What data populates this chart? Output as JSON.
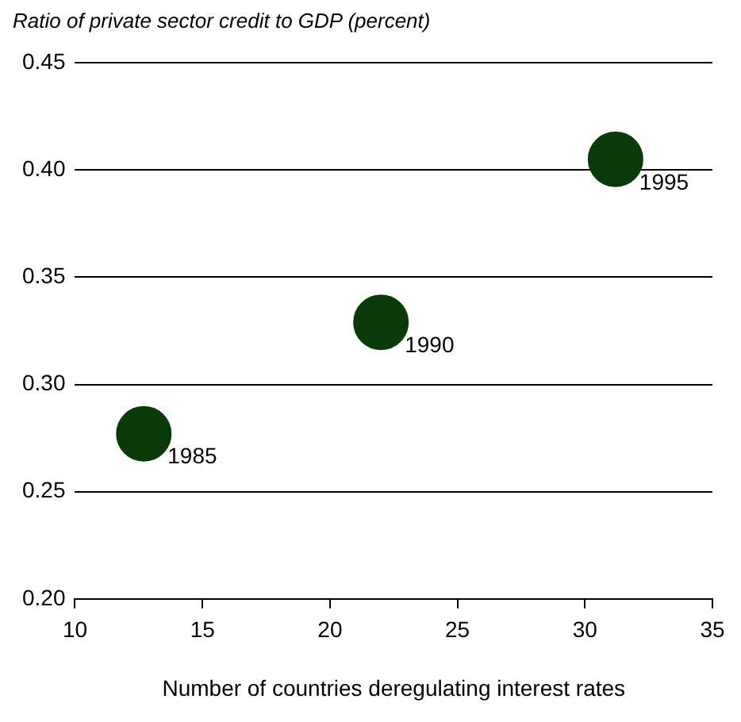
{
  "chart_data": {
    "type": "scatter",
    "ylabel": "Ratio of private sector credit to GDP (percent)",
    "xlabel": "Number of countries deregulating interest rates",
    "x": [
      12.7,
      22.0,
      31.2
    ],
    "values": [
      0.277,
      0.329,
      0.405
    ],
    "color": "#0a3a0a",
    "marker": "circle",
    "xlim": [
      10,
      35
    ],
    "xticks": [
      10,
      15,
      20,
      25,
      30,
      35
    ],
    "ylim": [
      0.2,
      0.45
    ],
    "yticks": [
      {
        "value": 0.2,
        "label": "0.20"
      },
      {
        "value": 0.25,
        "label": "0.25"
      },
      {
        "value": 0.3,
        "label": "0.30"
      },
      {
        "value": 0.35,
        "label": "0.35"
      },
      {
        "value": 0.4,
        "label": "0.40"
      },
      {
        "value": 0.45,
        "label": "0.45"
      }
    ],
    "grid": "y",
    "legend": false,
    "annotations": [
      {
        "text": "1985",
        "x": 12.7,
        "y": 0.277
      },
      {
        "text": "1990",
        "x": 22.0,
        "y": 0.329
      },
      {
        "text": "1995",
        "x": 31.2,
        "y": 0.405
      }
    ]
  }
}
